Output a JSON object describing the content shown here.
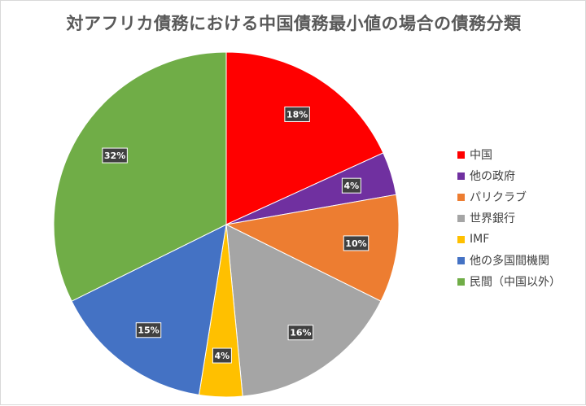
{
  "chart_data": {
    "type": "pie",
    "title": "対アフリカ債務における中国債務最小値の場合の債務分類",
    "categories": [
      "中国",
      "他の政府",
      "パリクラブ",
      "世界銀行",
      "IMF",
      "他の多国間機関",
      "民間（中国以外）"
    ],
    "values": [
      18,
      4,
      10,
      16,
      4,
      15,
      32
    ],
    "data_labels": [
      "18%",
      "4%",
      "10%",
      "16%",
      "4%",
      "15%",
      "32%"
    ],
    "colors": [
      "#ff0000",
      "#7030a0",
      "#ed7d31",
      "#a5a5a5",
      "#ffc000",
      "#4472c4",
      "#70ad47"
    ],
    "start_angle": "12 o'clock",
    "direction": "clockwise",
    "legend_position": "right"
  }
}
